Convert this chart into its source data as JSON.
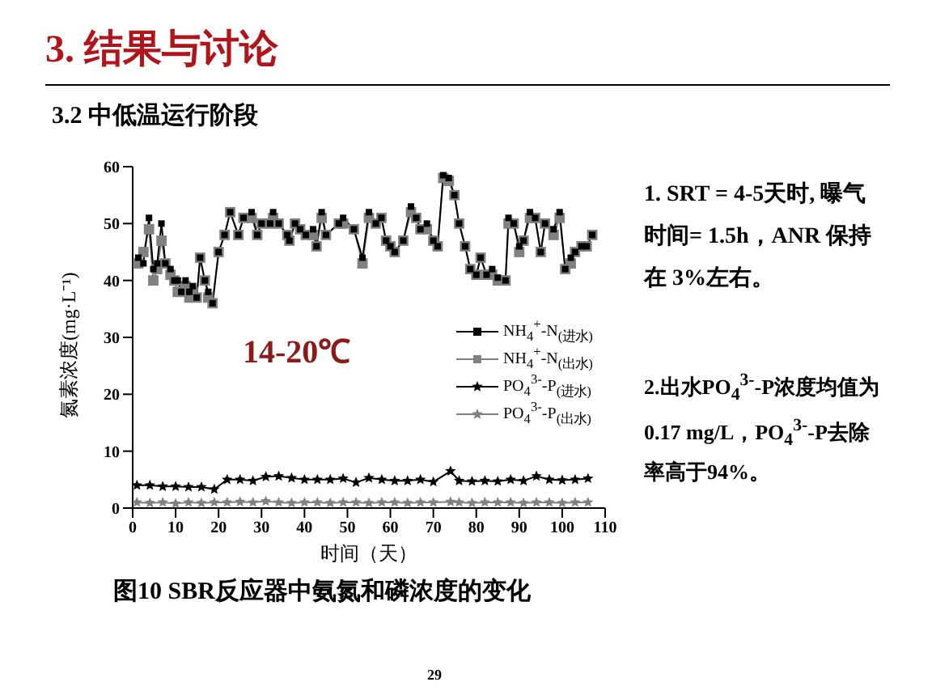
{
  "chart_data": {
    "type": "line",
    "title": "3. 结果与讨论",
    "subtitle": "3.2 中低温运行阶段",
    "xlabel": "时间（天）",
    "ylabel": "氮素浓度(mg·L⁻¹)",
    "x": [
      1.3,
      2.5,
      3.8,
      4.8,
      5.7,
      6.7,
      7.6,
      8.8,
      9.7,
      10.5,
      11.3,
      12.3,
      13.2,
      14,
      14.9,
      15.7,
      16.8,
      17.6,
      18.6,
      20,
      21.4,
      22.7,
      24.6,
      25.8,
      27.7,
      29,
      30,
      32,
      32.7,
      34,
      36,
      36.5,
      37.8,
      39,
      40.3,
      42,
      42.8,
      44,
      45,
      48,
      49,
      51.5,
      53.5,
      55,
      56.6,
      57.9,
      59,
      60,
      61,
      63,
      64.8,
      66,
      67,
      68.5,
      70,
      71,
      72.3,
      73.6,
      74.9,
      76,
      77.4,
      78.6,
      80,
      81,
      82.4,
      83.7,
      85,
      86.8,
      87.5,
      88.7,
      90,
      91,
      92.5,
      93.7,
      95,
      96,
      98,
      99.4,
      100.7,
      102,
      103,
      104.5,
      105.7,
      107
    ],
    "series": [
      {
        "name": "NH$_{4}$$^{+}$-N$_{(进水)}$",
        "color": "#000000",
        "marker": "square",
        "values": [
          44,
          43,
          51,
          42,
          43,
          50,
          43,
          42,
          40,
          40,
          38,
          40,
          38,
          39,
          37,
          44,
          40,
          38,
          36,
          45,
          48,
          52,
          48,
          51,
          52,
          48,
          50,
          50,
          52,
          50,
          48,
          47,
          50,
          49,
          48,
          49,
          46,
          52,
          48,
          50,
          51,
          49,
          44,
          52,
          50,
          51,
          47,
          46,
          45,
          47,
          53,
          51,
          49,
          50,
          47,
          46,
          58.5,
          58,
          55,
          50,
          46,
          42,
          41,
          44,
          41,
          42,
          40.5,
          40,
          51,
          50,
          46,
          47,
          52,
          51,
          45,
          50,
          49,
          52,
          42,
          44,
          45,
          46,
          46,
          48
        ]
      },
      {
        "name": "NH$_{4}$$^{+}$-N$_{(出水)}$",
        "color": "#808080",
        "marker": "square",
        "values": [
          43,
          45,
          49,
          40,
          42,
          47,
          43,
          41,
          40,
          38,
          38,
          39,
          37,
          38,
          37,
          44,
          40,
          37,
          36,
          45,
          48,
          52,
          48,
          51,
          51,
          48,
          50,
          50,
          51,
          50,
          48,
          47,
          50,
          49,
          48,
          48,
          46,
          51,
          48,
          50,
          50,
          49,
          43,
          51,
          50,
          51,
          47,
          46,
          45,
          47,
          52,
          51,
          49,
          49,
          47,
          46,
          58,
          57.5,
          55,
          50,
          46,
          42,
          41,
          44,
          41,
          41,
          40,
          40,
          50,
          50,
          45,
          47,
          51,
          51,
          45,
          50,
          48,
          51,
          42,
          43,
          45,
          46,
          46,
          48
        ]
      },
      {
        "name": "PO$_{4}$$^{3-}$-P$_{(进水)}$",
        "color": "#000000",
        "marker": "star",
        "x": [
          1,
          4,
          7,
          10,
          13,
          16,
          19,
          22,
          25,
          28,
          31,
          34,
          37,
          40,
          43,
          46,
          49,
          52,
          55,
          58,
          61,
          64,
          67,
          70,
          74,
          76,
          79,
          82,
          85,
          88,
          91,
          94,
          97,
          100,
          103,
          106
        ],
        "values": [
          4,
          4,
          3.8,
          3.8,
          3.7,
          3.7,
          3.3,
          5,
          5,
          4.8,
          5.5,
          5.6,
          5.3,
          5,
          5,
          5,
          5.2,
          4.5,
          5.3,
          5,
          4.8,
          4.8,
          5,
          4.6,
          6.5,
          4.8,
          4.7,
          4.8,
          4.7,
          5,
          4.8,
          5.6,
          5,
          4.9,
          5,
          5.2
        ]
      },
      {
        "name": "PO$_{4}$$^{3-}$-P$_{(出水)}$",
        "color": "#808080",
        "marker": "star",
        "x": [
          1,
          4,
          7,
          10,
          13,
          16,
          19,
          22,
          25,
          28,
          31,
          34,
          37,
          40,
          43,
          46,
          49,
          52,
          55,
          58,
          61,
          64,
          67,
          70,
          74,
          76,
          79,
          82,
          85,
          88,
          91,
          94,
          97,
          100,
          103,
          106
        ],
        "values": [
          1,
          0.9,
          1,
          0.8,
          1,
          0.9,
          1,
          1,
          1.1,
          1,
          1.2,
          1,
          0.9,
          1,
          1,
          0.9,
          1,
          1,
          0.9,
          1,
          1,
          0.9,
          1,
          1,
          1.1,
          1,
          0.9,
          1,
          1,
          1,
          0.9,
          1,
          1,
          0.9,
          1,
          1
        ]
      }
    ],
    "xlim": [
      0,
      110
    ],
    "xticks": [
      0,
      10,
      20,
      30,
      40,
      50,
      60,
      70,
      80,
      90,
      100,
      110
    ],
    "ylim": [
      0,
      60
    ],
    "yticks": [
      0,
      10,
      20,
      30,
      40,
      50,
      60
    ],
    "legend": "right",
    "line_style": "solid",
    "annotations": [
      "图10 SBR反应器中氨氮和磷浓度的变化",
      "14-20℃",
      "1. SRT = 4-5天时, 曝气时间= 1.5h，ANR 保持在 3%左右。",
      "2.出水PO$_{4}$$^{3-}$-P浓度均值为0.17 mg/L，PO$_{4}$$^{3-}$-P去除率高于94%。",
      "29"
    ]
  }
}
